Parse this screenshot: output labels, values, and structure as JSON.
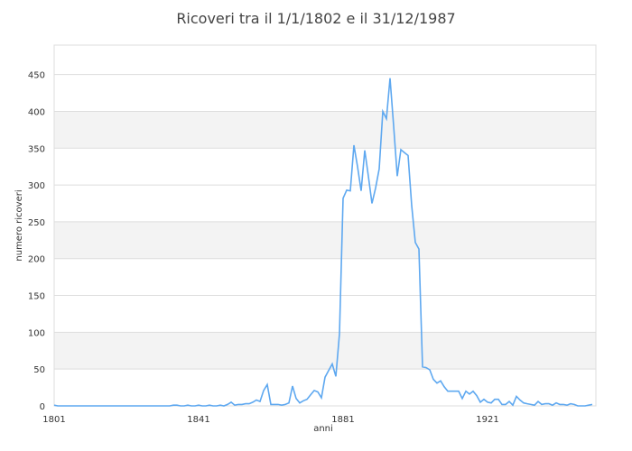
{
  "chart_data": {
    "type": "line",
    "title": "Ricoveri tra il 1/1/1802 e il 31/12/1987",
    "xlabel": "anni",
    "ylabel": "numero ricoveri",
    "xlim": [
      1801,
      1951
    ],
    "ylim": [
      0,
      490
    ],
    "x_ticks": [
      "1801",
      "1841",
      "1881",
      "1921"
    ],
    "y_ticks": [
      "0",
      "50",
      "100",
      "150",
      "200",
      "250",
      "300",
      "350",
      "400",
      "450"
    ],
    "grid": true,
    "line_color": "#5ea8f0",
    "x_start": 1801,
    "values": [
      1,
      0,
      0,
      0,
      0,
      0,
      0,
      0,
      0,
      0,
      0,
      0,
      0,
      0,
      0,
      0,
      0,
      0,
      0,
      0,
      0,
      0,
      0,
      0,
      0,
      0,
      0,
      0,
      0,
      0,
      0,
      0,
      0,
      1,
      1,
      0,
      0,
      1,
      0,
      0,
      1,
      0,
      0,
      1,
      0,
      0,
      1,
      0,
      2,
      5,
      1,
      2,
      2,
      3,
      3,
      5,
      8,
      6,
      21,
      29,
      2,
      2,
      2,
      1,
      2,
      4,
      27,
      10,
      4,
      7,
      9,
      15,
      21,
      19,
      11,
      39,
      48,
      57,
      40,
      98,
      282,
      293,
      292,
      354,
      325,
      292,
      347,
      312,
      275,
      296,
      322,
      400,
      390,
      445,
      380,
      312,
      348,
      344,
      340,
      272,
      222,
      213,
      53,
      52,
      49,
      36,
      31,
      34,
      26,
      20,
      20,
      20,
      20,
      10,
      20,
      16,
      20,
      14,
      5,
      9,
      5,
      4,
      9,
      9,
      2,
      2,
      6,
      1,
      13,
      8,
      4,
      3,
      2,
      1,
      6,
      2,
      3,
      3,
      1,
      4,
      2,
      2,
      1,
      3,
      2,
      0,
      0,
      0,
      1,
      2
    ]
  }
}
